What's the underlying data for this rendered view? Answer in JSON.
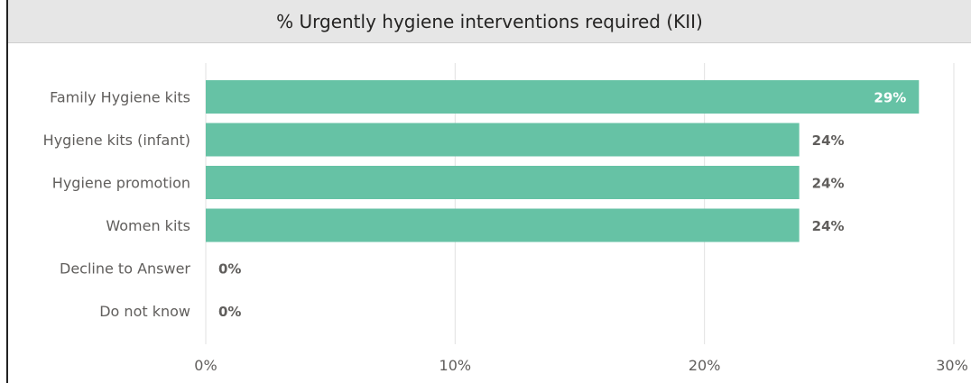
{
  "chart_data": {
    "type": "bar",
    "orientation": "horizontal",
    "title": "% Urgently hygiene interventions required (KII)",
    "categories": [
      "Family Hygiene kits",
      "Hygiene kits (infant)",
      "Hygiene promotion",
      "Women kits",
      "Decline to Answer",
      "Do not know"
    ],
    "values": [
      28.6,
      23.8,
      23.8,
      23.8,
      0,
      0
    ],
    "value_labels": [
      "29%",
      "24%",
      "24%",
      "24%",
      "0%",
      "0%"
    ],
    "xlim": [
      0,
      30
    ],
    "xticks": [
      0,
      10,
      20,
      30
    ],
    "xtick_labels": [
      "0%",
      "10%",
      "20%",
      "30%"
    ],
    "grid": true,
    "bar_color": "#66c2a5"
  }
}
